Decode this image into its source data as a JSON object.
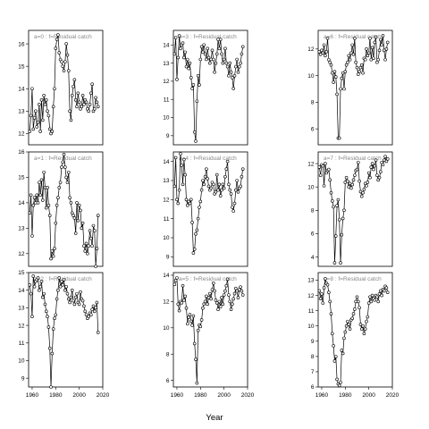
{
  "chart_data": {
    "type": "line",
    "xlabel": "Year",
    "x_ticks": [
      1960,
      1980,
      2000,
      2020
    ],
    "xlim": [
      1957,
      2020
    ],
    "panels": [
      {
        "label": "a=0 : f=Residual catch",
        "ylim": [
          11.5,
          16.6
        ],
        "yticks": [
          12,
          13,
          14,
          15,
          16
        ],
        "x": [
          1958,
          1959,
          1960,
          1961,
          1962,
          1963,
          1964,
          1965,
          1966,
          1967,
          1968,
          1969,
          1970,
          1971,
          1972,
          1973,
          1974,
          1975,
          1976,
          1977,
          1978,
          1979,
          1980,
          1981,
          1982,
          1983,
          1984,
          1985,
          1986,
          1987,
          1988,
          1989,
          1990,
          1991,
          1992,
          1993,
          1994,
          1995,
          1996,
          1997,
          1998,
          1999,
          2000,
          2001,
          2002,
          2003,
          2004,
          2005,
          2006,
          2007,
          2008,
          2009,
          2010,
          2011,
          2012,
          2013,
          2014,
          2015,
          2016
        ],
        "y": [
          12.1,
          12.8,
          14.0,
          12.2,
          12.7,
          13.0,
          12.3,
          12.5,
          13.3,
          12.1,
          13.5,
          12.6,
          13.7,
          13.3,
          13.5,
          13.0,
          12.8,
          12.2,
          12.0,
          12.1,
          13.2,
          14.0,
          15.8,
          16.2,
          16.4,
          15.6,
          15.3,
          15.2,
          15.0,
          14.8,
          15.2,
          16.0,
          15.5,
          14.8,
          13.0,
          12.6,
          13.7,
          14.1,
          14.4,
          13.5,
          13.2,
          13.8,
          13.4,
          13.1,
          13.2,
          13.7,
          13.3,
          13.5,
          13.4,
          13.1,
          13.0,
          13.3,
          13.8,
          14.2,
          13.0,
          13.1,
          13.6,
          13.4,
          13.2
        ]
      },
      {
        "label": "a=3 : f=Residual catch",
        "ylim": [
          8.5,
          14.8
        ],
        "yticks": [
          9,
          10,
          11,
          12,
          13,
          14
        ],
        "x": [
          1958,
          1959,
          1960,
          1961,
          1962,
          1963,
          1964,
          1965,
          1966,
          1967,
          1968,
          1969,
          1970,
          1971,
          1972,
          1973,
          1974,
          1975,
          1976,
          1977,
          1978,
          1979,
          1980,
          1981,
          1982,
          1983,
          1984,
          1985,
          1986,
          1987,
          1988,
          1989,
          1990,
          1991,
          1992,
          1993,
          1994,
          1995,
          1996,
          1997,
          1998,
          1999,
          2000,
          2001,
          2002,
          2003,
          2004,
          2005,
          2006,
          2007,
          2008,
          2009,
          2010,
          2011,
          2012,
          2013,
          2014,
          2015,
          2016
        ],
        "y": [
          13.5,
          14.4,
          12.1,
          13.3,
          14.5,
          13.8,
          14.0,
          14.1,
          13.3,
          13.6,
          12.8,
          13.2,
          12.7,
          13.0,
          12.2,
          11.6,
          11.8,
          9.2,
          8.7,
          10.9,
          12.3,
          11.8,
          13.2,
          13.9,
          13.6,
          14.0,
          13.5,
          13.2,
          13.8,
          13.3,
          13.0,
          13.2,
          13.7,
          13.2,
          12.5,
          13.0,
          13.5,
          14.3,
          13.8,
          14.3,
          13.5,
          13.0,
          13.2,
          13.8,
          13.0,
          12.8,
          12.3,
          13.0,
          12.5,
          12.2,
          11.6,
          12.3,
          12.8,
          13.2,
          12.5,
          12.8,
          13.0,
          13.5,
          13.9
        ]
      },
      {
        "label": "a=6 : f=Residual catch",
        "ylim": [
          4.8,
          13.4
        ],
        "yticks": [
          6,
          8,
          10,
          12
        ],
        "x": [
          1958,
          1959,
          1960,
          1961,
          1962,
          1963,
          1964,
          1965,
          1966,
          1967,
          1968,
          1969,
          1970,
          1971,
          1972,
          1973,
          1974,
          1975,
          1976,
          1977,
          1978,
          1979,
          1980,
          1981,
          1982,
          1983,
          1984,
          1985,
          1986,
          1987,
          1988,
          1989,
          1990,
          1991,
          1992,
          1993,
          1994,
          1995,
          1996,
          1997,
          1998,
          1999,
          2000,
          2001,
          2002,
          2003,
          2004,
          2005,
          2006,
          2007,
          2008,
          2009,
          2010,
          2011,
          2012,
          2013,
          2014,
          2015,
          2016
        ],
        "y": [
          11.8,
          11.6,
          11.9,
          11.7,
          12.3,
          11.5,
          11.8,
          12.8,
          11.2,
          11.0,
          10.8,
          10.2,
          9.5,
          10.3,
          9.9,
          8.6,
          5.3,
          5.3,
          9.0,
          9.8,
          10.2,
          9.0,
          10.3,
          10.8,
          11.0,
          11.5,
          11.2,
          11.7,
          12.3,
          11.6,
          12.8,
          11.0,
          10.6,
          10.1,
          10.3,
          10.6,
          10.8,
          10.2,
          11.3,
          11.2,
          12.0,
          11.5,
          11.7,
          12.8,
          11.2,
          12.1,
          11.3,
          12.5,
          12.9,
          11.0,
          11.2,
          11.9,
          12.7,
          12.3,
          13.0,
          11.9,
          11.2,
          12.0,
          12.5
        ]
      },
      {
        "label": "a=1 : f=Residual catch",
        "ylim": [
          11.5,
          16.0
        ],
        "yticks": [
          12,
          13,
          14,
          15,
          16
        ],
        "x": [
          1958,
          1959,
          1960,
          1961,
          1962,
          1963,
          1964,
          1965,
          1966,
          1967,
          1968,
          1969,
          1970,
          1971,
          1972,
          1973,
          1974,
          1975,
          1976,
          1977,
          1978,
          1979,
          1980,
          1981,
          1982,
          1983,
          1984,
          1985,
          1986,
          1987,
          1988,
          1989,
          1990,
          1991,
          1992,
          1993,
          1994,
          1995,
          1996,
          1997,
          1998,
          1999,
          2000,
          2001,
          2002,
          2003,
          2004,
          2005,
          2006,
          2007,
          2008,
          2009,
          2010,
          2011,
          2012,
          2013,
          2014,
          2015,
          2016
        ],
        "y": [
          13.6,
          14.3,
          12.7,
          13.9,
          14.2,
          14.0,
          14.3,
          14.0,
          14.8,
          14.3,
          14.9,
          14.1,
          15.2,
          14.6,
          13.8,
          14.6,
          13.9,
          13.5,
          11.8,
          12.1,
          11.9,
          12.2,
          13.2,
          13.9,
          14.2,
          14.6,
          14.8,
          15.4,
          15.6,
          15.9,
          15.4,
          15.0,
          14.8,
          15.2,
          14.2,
          14.0,
          13.6,
          13.5,
          13.4,
          12.8,
          14.0,
          13.3,
          13.9,
          13.7,
          13.0,
          13.2,
          12.3,
          12.1,
          12.4,
          12.0,
          12.3,
          12.9,
          12.6,
          12.3,
          13.1,
          12.9,
          11.5,
          12.2,
          13.5
        ]
      },
      {
        "label": "a=4 : f=Residual catch",
        "ylim": [
          8.5,
          14.5
        ],
        "yticks": [
          9,
          10,
          11,
          12,
          13,
          14
        ],
        "x": [
          1958,
          1959,
          1960,
          1961,
          1962,
          1963,
          1964,
          1965,
          1966,
          1967,
          1968,
          1969,
          1970,
          1971,
          1972,
          1973,
          1974,
          1975,
          1976,
          1977,
          1978,
          1979,
          1980,
          1981,
          1982,
          1983,
          1984,
          1985,
          1986,
          1987,
          1988,
          1989,
          1990,
          1991,
          1992,
          1993,
          1994,
          1995,
          1996,
          1997,
          1998,
          1999,
          2000,
          2001,
          2002,
          2003,
          2004,
          2005,
          2006,
          2007,
          2008,
          2009,
          2010,
          2011,
          2012,
          2013,
          2014,
          2015,
          2016
        ],
        "y": [
          12.7,
          14.2,
          12.0,
          11.8,
          12.5,
          14.4,
          13.8,
          12.8,
          14.1,
          13.3,
          12.0,
          11.7,
          11.9,
          11.8,
          12.0,
          10.8,
          9.2,
          9.4,
          10.2,
          10.4,
          11.0,
          11.6,
          11.9,
          12.5,
          13.0,
          12.8,
          13.2,
          13.6,
          13.1,
          12.7,
          12.5,
          12.6,
          12.9,
          12.8,
          12.3,
          12.4,
          13.3,
          12.5,
          12.8,
          12.2,
          12.5,
          12.8,
          12.6,
          13.2,
          13.6,
          14.0,
          12.8,
          12.5,
          12.3,
          11.6,
          11.4,
          11.8,
          12.5,
          13.0,
          12.4,
          12.6,
          12.7,
          13.2,
          13.6
        ]
      },
      {
        "label": "a=7 : f=Residual catch",
        "ylim": [
          3.2,
          13.0
        ],
        "yticks": [
          4,
          6,
          8,
          10,
          12
        ],
        "x": [
          1958,
          1959,
          1960,
          1961,
          1962,
          1963,
          1964,
          1965,
          1966,
          1967,
          1968,
          1969,
          1970,
          1971,
          1972,
          1973,
          1974,
          1975,
          1976,
          1977,
          1978,
          1979,
          1980,
          1981,
          1982,
          1983,
          1984,
          1985,
          1986,
          1987,
          1988,
          1989,
          1990,
          1991,
          1992,
          1993,
          1994,
          1995,
          1996,
          1997,
          1998,
          1999,
          2000,
          2001,
          2002,
          2003,
          2004,
          2005,
          2006,
          2007,
          2008,
          2009,
          2010,
          2011,
          2012,
          2013,
          2014,
          2015,
          2016
        ],
        "y": [
          11.7,
          11.0,
          11.9,
          11.8,
          10.1,
          12.0,
          11.2,
          11.4,
          11.5,
          10.6,
          9.5,
          8.8,
          8.3,
          3.5,
          5.8,
          8.4,
          8.9,
          7.2,
          3.5,
          5.9,
          7.3,
          8.0,
          10.4,
          10.8,
          10.5,
          10.0,
          10.3,
          9.9,
          10.2,
          10.6,
          11.0,
          11.4,
          11.5,
          12.1,
          10.5,
          9.6,
          9.2,
          9.5,
          9.8,
          10.3,
          10.1,
          10.4,
          11.2,
          10.8,
          11.7,
          12.0,
          11.5,
          11.8,
          12.3,
          11.0,
          10.6,
          10.8,
          11.3,
          12.1,
          11.9,
          12.3,
          12.6,
          12.2,
          12.4
        ]
      },
      {
        "label": "a=2 : f=Residual catch",
        "ylim": [
          8.5,
          15.0
        ],
        "yticks": [
          9,
          10,
          11,
          12,
          13,
          14,
          15
        ],
        "x": [
          1958,
          1959,
          1960,
          1961,
          1962,
          1963,
          1964,
          1965,
          1966,
          1967,
          1968,
          1969,
          1970,
          1971,
          1972,
          1973,
          1974,
          1975,
          1976,
          1977,
          1978,
          1979,
          1980,
          1981,
          1982,
          1983,
          1984,
          1985,
          1986,
          1987,
          1988,
          1989,
          1990,
          1991,
          1992,
          1993,
          1994,
          1995,
          1996,
          1997,
          1998,
          1999,
          2000,
          2001,
          2002,
          2003,
          2004,
          2005,
          2006,
          2007,
          2008,
          2009,
          2010,
          2011,
          2012,
          2013,
          2014,
          2015,
          2016
        ],
        "y": [
          14.3,
          13.8,
          12.5,
          14.8,
          14.2,
          14.5,
          14.6,
          14.7,
          14.0,
          14.2,
          14.5,
          13.6,
          13.8,
          13.2,
          12.8,
          12.5,
          11.9,
          10.7,
          8.5,
          10.4,
          11.8,
          12.4,
          12.6,
          13.5,
          14.0,
          14.7,
          14.2,
          14.5,
          14.3,
          14.6,
          14.0,
          14.2,
          13.8,
          13.5,
          13.3,
          13.6,
          14.0,
          13.4,
          13.2,
          13.6,
          13.8,
          13.3,
          13.2,
          13.9,
          13.5,
          13.4,
          13.1,
          12.8,
          12.6,
          12.4,
          12.5,
          12.7,
          12.6,
          12.9,
          13.1,
          12.8,
          13.0,
          13.3,
          11.6
        ]
      },
      {
        "label": "a=5 : f=Residual catch",
        "ylim": [
          5.5,
          14.2
        ],
        "yticks": [
          6,
          8,
          10,
          12,
          14
        ],
        "x": [
          1958,
          1959,
          1960,
          1961,
          1962,
          1963,
          1964,
          1965,
          1966,
          1967,
          1968,
          1969,
          1970,
          1971,
          1972,
          1973,
          1974,
          1975,
          1976,
          1977,
          1978,
          1979,
          1980,
          1981,
          1982,
          1983,
          1984,
          1985,
          1986,
          1987,
          1988,
          1989,
          1990,
          1991,
          1992,
          1993,
          1994,
          1995,
          1996,
          1997,
          1998,
          1999,
          2000,
          2001,
          2002,
          2003,
          2004,
          2005,
          2006,
          2007,
          2008,
          2009,
          2010,
          2011,
          2012,
          2013,
          2014,
          2015,
          2016
        ],
        "y": [
          13.3,
          13.6,
          13.8,
          11.8,
          11.3,
          12.0,
          11.9,
          13.2,
          12.1,
          12.4,
          11.5,
          10.3,
          10.8,
          11.0,
          10.5,
          10.2,
          10.9,
          8.8,
          7.6,
          5.8,
          9.8,
          10.2,
          10.1,
          10.6,
          11.5,
          11.8,
          12.0,
          12.4,
          11.8,
          12.3,
          12.6,
          12.2,
          12.9,
          13.4,
          12.8,
          12.1,
          11.9,
          11.4,
          12.0,
          11.6,
          12.3,
          11.8,
          12.5,
          12.8,
          13.2,
          13.7,
          12.5,
          12.0,
          11.4,
          11.8,
          12.2,
          12.6,
          13.0,
          12.8,
          12.3,
          12.9,
          13.1,
          12.8,
          12.5
        ]
      },
      {
        "label": "a=8 : f=Residual catch",
        "ylim": [
          6.0,
          13.5
        ],
        "yticks": [
          6,
          7,
          8,
          9,
          10,
          11,
          12,
          13
        ],
        "x": [
          1958,
          1959,
          1960,
          1961,
          1962,
          1963,
          1964,
          1965,
          1966,
          1967,
          1968,
          1969,
          1970,
          1971,
          1972,
          1973,
          1974,
          1975,
          1976,
          1977,
          1978,
          1979,
          1980,
          1981,
          1982,
          1983,
          1984,
          1985,
          1986,
          1987,
          1988,
          1989,
          1990,
          1991,
          1992,
          1993,
          1994,
          1995,
          1996,
          1997,
          1998,
          1999,
          2000,
          2001,
          2002,
          2003,
          2004,
          2005,
          2006,
          2007,
          2008,
          2009,
          2010,
          2011,
          2012,
          2013,
          2014,
          2015,
          2016
        ],
        "y": [
          12.3,
          11.8,
          12.1,
          11.5,
          12.5,
          13.1,
          12.8,
          12.7,
          12.2,
          11.6,
          10.8,
          9.5,
          8.7,
          7.7,
          8.0,
          6.5,
          6.2,
          6.1,
          6.3,
          8.4,
          8.2,
          9.2,
          9.6,
          10.0,
          10.3,
          10.1,
          9.8,
          10.4,
          10.5,
          10.8,
          11.1,
          11.6,
          11.9,
          11.6,
          11.2,
          10.1,
          9.8,
          10.0,
          9.5,
          9.8,
          10.3,
          10.6,
          11.5,
          11.9,
          11.6,
          12.0,
          11.8,
          11.7,
          12.0,
          11.9,
          11.6,
          12.1,
          12.3,
          12.0,
          12.4,
          12.3,
          12.6,
          12.5,
          12.2
        ]
      }
    ]
  }
}
